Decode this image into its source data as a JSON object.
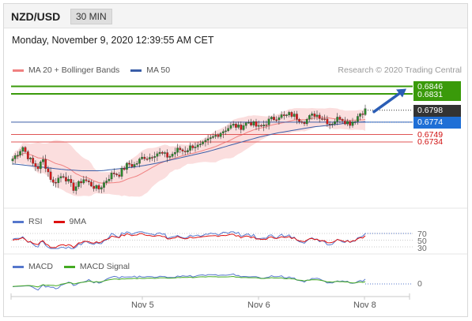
{
  "header": {
    "pair": "NZD/USD",
    "timeframe": "30 MIN"
  },
  "datetime": "Monday, November 9, 2020 12:39:55 AM CET",
  "research": "Research © 2020 Trading Central",
  "legend_main": [
    {
      "label": "MA 20 + Bollinger Bands",
      "color": "#f08080"
    },
    {
      "label": "MA 50",
      "color": "#3a5ea8"
    }
  ],
  "legend_rsi": [
    {
      "label": "RSI",
      "color": "#5577cc"
    },
    {
      "label": "9MA",
      "color": "#dd1111"
    }
  ],
  "legend_macd": [
    {
      "label": "MACD",
      "color": "#5577cc"
    },
    {
      "label": "MACD Signal",
      "color": "#44aa22"
    }
  ],
  "levels": {
    "resistance": [
      "0.6846",
      "0.6831"
    ],
    "current": "0.6798",
    "pivot": "0.6774",
    "support": [
      "0.6749",
      "0.6734"
    ]
  },
  "rsi_levels": [
    "70",
    "50",
    "30"
  ],
  "macd_level": "0",
  "x_labels": [
    "Nov 5",
    "Nov 6",
    "Nov 8"
  ],
  "colors": {
    "up": "#2c8a2c",
    "down": "#d81818",
    "level_green": "#3a9a0a",
    "pivot_blue": "#1f6fd6",
    "current": "#333333"
  },
  "chart_data": {
    "type": "candlestick",
    "title": "NZD/USD 30 MIN",
    "ylim": [
      0.658,
      0.688
    ],
    "x_ticks": [
      "Nov 5",
      "Nov 6",
      "Nov 8"
    ],
    "close_series": [
      0.67,
      0.6712,
      0.6724,
      0.6705,
      0.669,
      0.6682,
      0.6698,
      0.6675,
      0.665,
      0.666,
      0.6668,
      0.6655,
      0.664,
      0.6648,
      0.666,
      0.6652,
      0.6645,
      0.6638,
      0.665,
      0.6662,
      0.6672,
      0.6668,
      0.668,
      0.669,
      0.6686,
      0.6695,
      0.6705,
      0.6702,
      0.671,
      0.6712,
      0.6708,
      0.6704,
      0.6712,
      0.672,
      0.6715,
      0.6722,
      0.6728,
      0.6724,
      0.673,
      0.6738,
      0.6745,
      0.6752,
      0.6758,
      0.6764,
      0.6768,
      0.6762,
      0.677,
      0.6775,
      0.6768,
      0.6762,
      0.677,
      0.6778,
      0.6782,
      0.6788,
      0.6784,
      0.679,
      0.6786,
      0.678,
      0.6776,
      0.6784,
      0.679,
      0.6786,
      0.678,
      0.677,
      0.6778,
      0.6784,
      0.6776,
      0.6772,
      0.678,
      0.6792,
      0.6798
    ],
    "ma50_series": [
      0.669,
      0.6686,
      0.6682,
      0.6678,
      0.6676,
      0.6676,
      0.668,
      0.6684,
      0.669,
      0.6698,
      0.6706,
      0.6714,
      0.6724,
      0.6734,
      0.6744,
      0.6752,
      0.6758,
      0.6764,
      0.6768,
      0.6772,
      0.6775
    ],
    "levels": {
      "resistance": [
        0.6846,
        0.6831
      ],
      "current": 0.6798,
      "pivot": 0.6774,
      "support": [
        0.6749,
        0.6734
      ]
    },
    "target": 0.6846,
    "rsi": {
      "levels": [
        70,
        50,
        30
      ]
    },
    "macd": {
      "zero": 0
    }
  }
}
